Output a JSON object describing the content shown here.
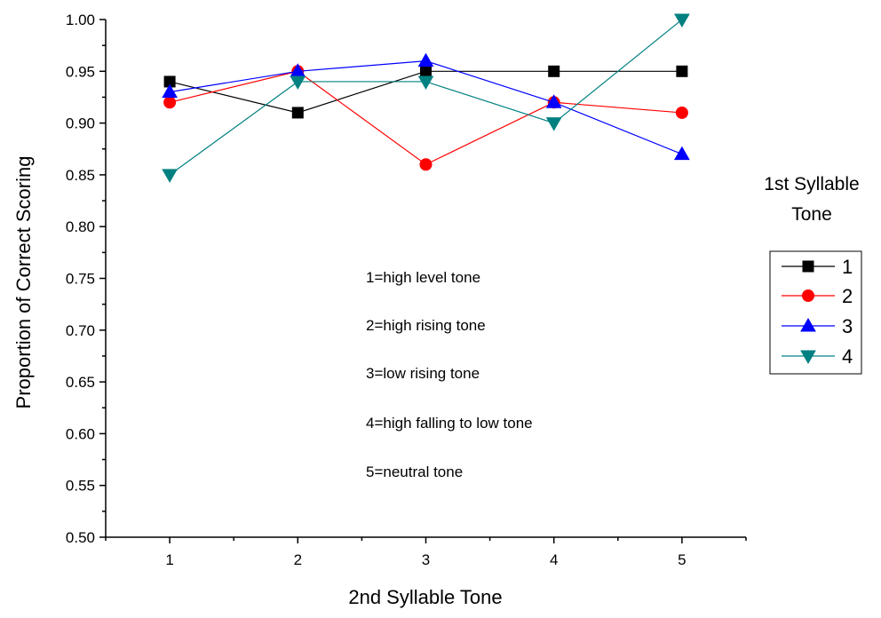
{
  "chart_data": {
    "type": "line",
    "title": "",
    "xlabel": "2nd Syllable Tone",
    "ylabel": "Proportion of Correct Scoring",
    "x": [
      1,
      2,
      3,
      4,
      5
    ],
    "x_ticks": [
      "1",
      "2",
      "3",
      "4",
      "5"
    ],
    "xlim": [
      0.5,
      5.5
    ],
    "ylim": [
      0.5,
      1.0
    ],
    "y_ticks": [
      "0.50",
      "0.55",
      "0.60",
      "0.65",
      "0.70",
      "0.75",
      "0.80",
      "0.85",
      "0.90",
      "0.95",
      "1.00"
    ],
    "grid": false,
    "legend": {
      "title_line1": "1st Syllable",
      "title_line2": "Tone",
      "placement": "right"
    },
    "series": [
      {
        "name": "1",
        "values": [
          0.94,
          0.91,
          0.95,
          0.95,
          0.95
        ],
        "color": "#000000",
        "marker": "square"
      },
      {
        "name": "2",
        "values": [
          0.92,
          0.95,
          0.86,
          0.92,
          0.91
        ],
        "color": "#ff0000",
        "marker": "circle"
      },
      {
        "name": "3",
        "values": [
          0.93,
          0.95,
          0.96,
          0.92,
          0.87
        ],
        "color": "#0000ff",
        "marker": "triangle-up"
      },
      {
        "name": "4",
        "values": [
          0.85,
          0.94,
          0.94,
          0.9,
          1.0
        ],
        "color": "#008080",
        "marker": "triangle-down"
      }
    ],
    "annotations": [
      "1=high level tone",
      "2=high rising tone",
      "3=low rising tone",
      "4=high falling to low tone",
      "5=neutral tone"
    ]
  }
}
